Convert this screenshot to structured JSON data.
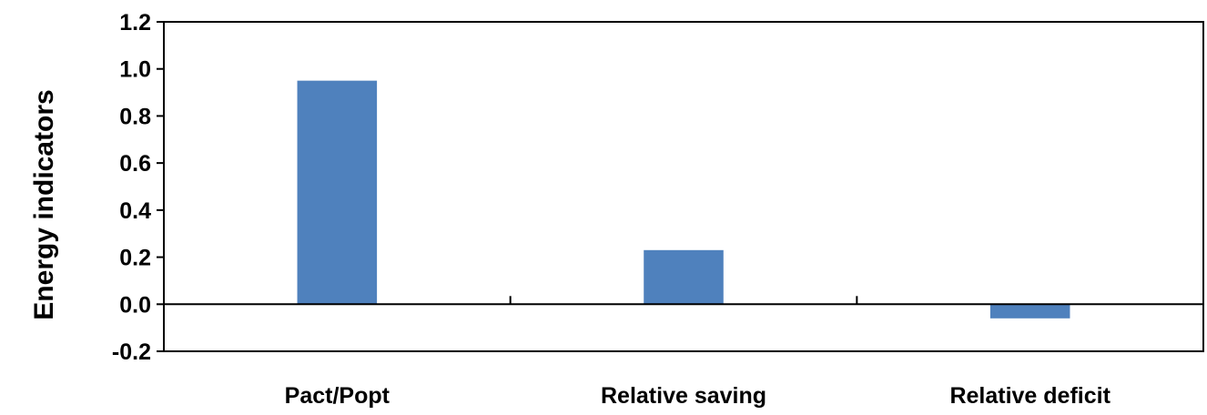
{
  "chart_data": {
    "type": "bar",
    "categories": [
      "Pact/Popt",
      "Relative saving",
      "Relative deficit"
    ],
    "values": [
      0.95,
      0.23,
      -0.06
    ],
    "ylabel": "Energy indicators",
    "ylim": [
      -0.2,
      1.2
    ],
    "yticks": [
      "-0.2",
      "0.0",
      "0.2",
      "0.4",
      "0.6",
      "0.8",
      "1.0",
      "1.2"
    ],
    "bar_color": "#4f81bd",
    "grid": false,
    "legend": "none"
  }
}
